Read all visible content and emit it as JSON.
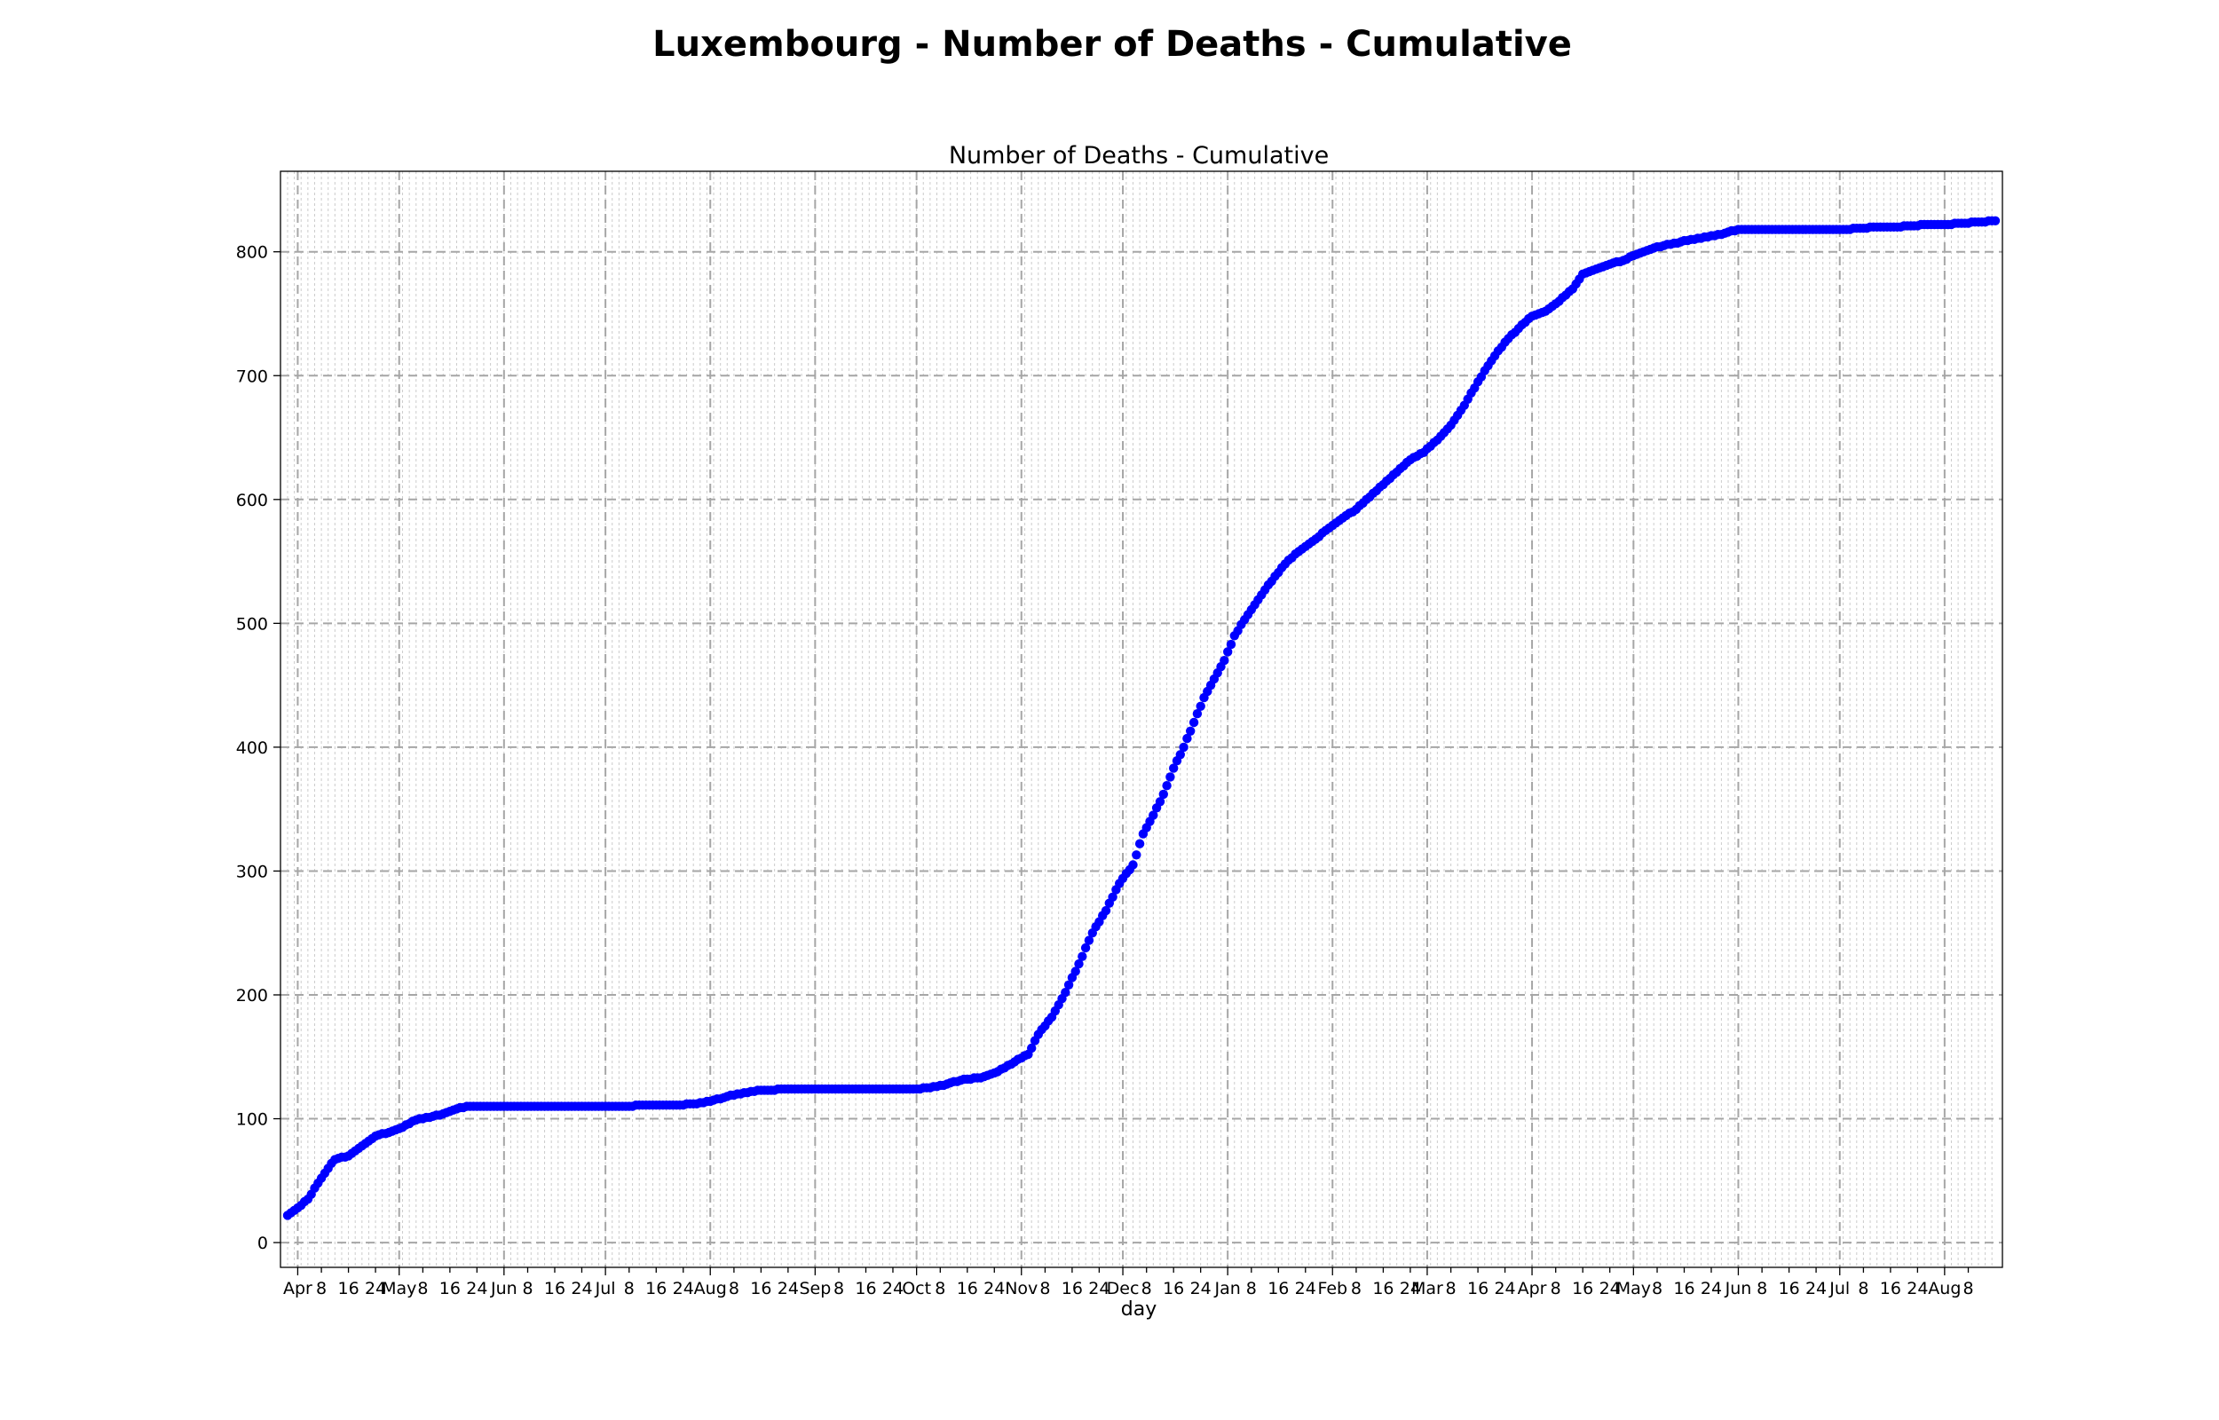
{
  "chart_data": {
    "type": "scatter",
    "suptitle": "Luxembourg - Number of Deaths - Cumulative",
    "title": "Number of Deaths - Cumulative",
    "xlabel": "day",
    "ylabel": "",
    "ylim": [
      -20,
      865
    ],
    "yticks": [
      0,
      100,
      200,
      300,
      400,
      500,
      600,
      700,
      800
    ],
    "x_start_date": "2020-03-29",
    "x_end_date": "2021-08-16",
    "x_range_days": [
      0,
      505
    ],
    "grid": "both",
    "marker_color": "#0000ff",
    "x_ticks": [
      {
        "day": 3,
        "label": "Apr",
        "major": true
      },
      {
        "day": 10,
        "label": "8",
        "major": false
      },
      {
        "day": 18,
        "label": "16",
        "major": false
      },
      {
        "day": 26,
        "label": "24",
        "major": false
      },
      {
        "day": 33,
        "label": "May",
        "major": true
      },
      {
        "day": 40,
        "label": "8",
        "major": false
      },
      {
        "day": 48,
        "label": "16",
        "major": false
      },
      {
        "day": 56,
        "label": "24",
        "major": false
      },
      {
        "day": 64,
        "label": "Jun",
        "major": true
      },
      {
        "day": 71,
        "label": "8",
        "major": false
      },
      {
        "day": 79,
        "label": "16",
        "major": false
      },
      {
        "day": 87,
        "label": "24",
        "major": false
      },
      {
        "day": 94,
        "label": "Jul",
        "major": true
      },
      {
        "day": 101,
        "label": "8",
        "major": false
      },
      {
        "day": 109,
        "label": "16",
        "major": false
      },
      {
        "day": 117,
        "label": "24",
        "major": false
      },
      {
        "day": 125,
        "label": "Aug",
        "major": true
      },
      {
        "day": 132,
        "label": "8",
        "major": false
      },
      {
        "day": 140,
        "label": "16",
        "major": false
      },
      {
        "day": 148,
        "label": "24",
        "major": false
      },
      {
        "day": 156,
        "label": "Sep",
        "major": true
      },
      {
        "day": 163,
        "label": "8",
        "major": false
      },
      {
        "day": 171,
        "label": "16",
        "major": false
      },
      {
        "day": 179,
        "label": "24",
        "major": false
      },
      {
        "day": 186,
        "label": "Oct",
        "major": true
      },
      {
        "day": 193,
        "label": "8",
        "major": false
      },
      {
        "day": 201,
        "label": "16",
        "major": false
      },
      {
        "day": 209,
        "label": "24",
        "major": false
      },
      {
        "day": 217,
        "label": "Nov",
        "major": true
      },
      {
        "day": 224,
        "label": "8",
        "major": false
      },
      {
        "day": 232,
        "label": "16",
        "major": false
      },
      {
        "day": 240,
        "label": "24",
        "major": false
      },
      {
        "day": 247,
        "label": "Dec",
        "major": true
      },
      {
        "day": 254,
        "label": "8",
        "major": false
      },
      {
        "day": 262,
        "label": "16",
        "major": false
      },
      {
        "day": 270,
        "label": "24",
        "major": false
      },
      {
        "day": 278,
        "label": "Jan",
        "major": true
      },
      {
        "day": 285,
        "label": "8",
        "major": false
      },
      {
        "day": 293,
        "label": "16",
        "major": false
      },
      {
        "day": 301,
        "label": "24",
        "major": false
      },
      {
        "day": 309,
        "label": "Feb",
        "major": true
      },
      {
        "day": 316,
        "label": "8",
        "major": false
      },
      {
        "day": 324,
        "label": "16",
        "major": false
      },
      {
        "day": 332,
        "label": "24",
        "major": false
      },
      {
        "day": 337,
        "label": "Mar",
        "major": true
      },
      {
        "day": 344,
        "label": "8",
        "major": false
      },
      {
        "day": 352,
        "label": "16",
        "major": false
      },
      {
        "day": 360,
        "label": "24",
        "major": false
      },
      {
        "day": 368,
        "label": "Apr",
        "major": true
      },
      {
        "day": 375,
        "label": "8",
        "major": false
      },
      {
        "day": 383,
        "label": "16",
        "major": false
      },
      {
        "day": 391,
        "label": "24",
        "major": false
      },
      {
        "day": 398,
        "label": "May",
        "major": true
      },
      {
        "day": 405,
        "label": "8",
        "major": false
      },
      {
        "day": 413,
        "label": "16",
        "major": false
      },
      {
        "day": 421,
        "label": "24",
        "major": false
      },
      {
        "day": 429,
        "label": "Jun",
        "major": true
      },
      {
        "day": 436,
        "label": "8",
        "major": false
      },
      {
        "day": 444,
        "label": "16",
        "major": false
      },
      {
        "day": 452,
        "label": "24",
        "major": false
      },
      {
        "day": 459,
        "label": "Jul",
        "major": true
      },
      {
        "day": 466,
        "label": "8",
        "major": false
      },
      {
        "day": 474,
        "label": "16",
        "major": false
      },
      {
        "day": 482,
        "label": "24",
        "major": false
      },
      {
        "day": 490,
        "label": "Aug",
        "major": true
      },
      {
        "day": 497,
        "label": "8",
        "major": false
      }
    ],
    "key_points": [
      [
        0,
        22
      ],
      [
        3,
        28
      ],
      [
        6,
        35
      ],
      [
        9,
        48
      ],
      [
        12,
        60
      ],
      [
        14,
        67
      ],
      [
        18,
        70
      ],
      [
        22,
        78
      ],
      [
        26,
        86
      ],
      [
        30,
        89
      ],
      [
        34,
        93
      ],
      [
        38,
        99
      ],
      [
        42,
        101
      ],
      [
        46,
        104
      ],
      [
        50,
        108
      ],
      [
        53,
        110
      ],
      [
        60,
        110
      ],
      [
        80,
        110
      ],
      [
        100,
        110
      ],
      [
        105,
        111
      ],
      [
        115,
        111
      ],
      [
        120,
        112
      ],
      [
        125,
        114
      ],
      [
        130,
        118
      ],
      [
        135,
        121
      ],
      [
        140,
        123
      ],
      [
        150,
        124
      ],
      [
        160,
        124
      ],
      [
        170,
        124
      ],
      [
        180,
        124
      ],
      [
        186,
        124
      ],
      [
        190,
        125
      ],
      [
        195,
        128
      ],
      [
        200,
        132
      ],
      [
        205,
        133
      ],
      [
        210,
        138
      ],
      [
        215,
        146
      ],
      [
        219,
        152
      ],
      [
        222,
        168
      ],
      [
        226,
        182
      ],
      [
        230,
        202
      ],
      [
        234,
        225
      ],
      [
        238,
        250
      ],
      [
        242,
        268
      ],
      [
        246,
        290
      ],
      [
        250,
        305
      ],
      [
        253,
        330
      ],
      [
        256,
        345
      ],
      [
        259,
        362
      ],
      [
        262,
        383
      ],
      [
        265,
        400
      ],
      [
        268,
        420
      ],
      [
        271,
        440
      ],
      [
        274,
        455
      ],
      [
        277,
        470
      ],
      [
        280,
        490
      ],
      [
        283,
        503
      ],
      [
        286,
        515
      ],
      [
        289,
        527
      ],
      [
        292,
        538
      ],
      [
        295,
        548
      ],
      [
        298,
        556
      ],
      [
        301,
        562
      ],
      [
        304,
        568
      ],
      [
        308,
        577
      ],
      [
        312,
        585
      ],
      [
        316,
        592
      ],
      [
        320,
        602
      ],
      [
        324,
        612
      ],
      [
        328,
        622
      ],
      [
        332,
        632
      ],
      [
        336,
        638
      ],
      [
        340,
        648
      ],
      [
        344,
        660
      ],
      [
        348,
        676
      ],
      [
        352,
        695
      ],
      [
        356,
        712
      ],
      [
        360,
        727
      ],
      [
        364,
        738
      ],
      [
        368,
        748
      ],
      [
        372,
        752
      ],
      [
        376,
        760
      ],
      [
        380,
        770
      ],
      [
        383,
        782
      ],
      [
        387,
        786
      ],
      [
        391,
        790
      ],
      [
        395,
        793
      ],
      [
        399,
        798
      ],
      [
        403,
        802
      ],
      [
        407,
        805
      ],
      [
        411,
        807
      ],
      [
        415,
        810
      ],
      [
        420,
        812
      ],
      [
        425,
        815
      ],
      [
        429,
        818
      ],
      [
        435,
        818
      ],
      [
        445,
        818
      ],
      [
        455,
        818
      ],
      [
        460,
        818
      ],
      [
        465,
        819
      ],
      [
        470,
        820
      ],
      [
        475,
        820
      ],
      [
        480,
        821
      ],
      [
        485,
        822
      ],
      [
        490,
        822
      ],
      [
        495,
        823
      ],
      [
        500,
        824
      ],
      [
        505,
        825
      ]
    ]
  }
}
